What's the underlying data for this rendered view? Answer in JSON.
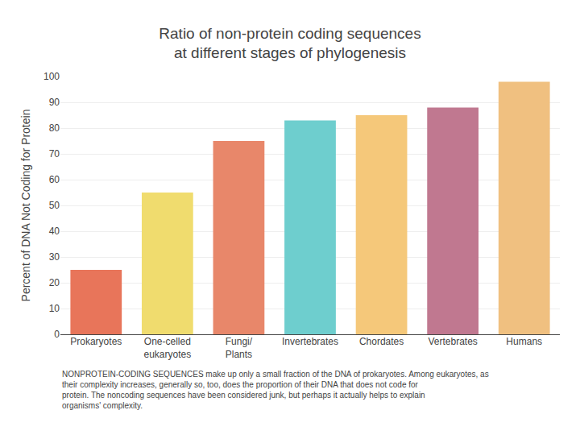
{
  "chart_data": {
    "type": "bar",
    "title": "Ratio of non-protein coding sequences",
    "subtitle": "at different stages of phylogenesis",
    "categories": [
      "Prokaryotes",
      "One-celled\neukaryotes",
      "Fungi/\nPlants",
      "Invertebrates",
      "Chordates",
      "Vertebrates",
      "Humans"
    ],
    "values": [
      25,
      55,
      75,
      83,
      85,
      88,
      98
    ],
    "colors": [
      "#E8755A",
      "#F0DC6E",
      "#E8876A",
      "#6ECECE",
      "#F5C87A",
      "#C07890",
      "#F0C080"
    ],
    "ylabel": "Percent of DNA Not Coding for Protein",
    "ylim": [
      0,
      100
    ],
    "yticks": [
      0,
      10,
      20,
      30,
      40,
      50,
      60,
      70,
      80,
      90,
      100
    ],
    "grid": true,
    "annotations": [
      "NONPROTEIN-CODING SEQUENCES make up only a small fraction of the DNA of prokaryotes. Among eukaryotes, as their complexity increases, generally so, too, does the proportion of their DNA that does not code for protein. The noncoding sequences have been considered junk, but perhaps it actually helps to explain organisms' complexity."
    ]
  }
}
